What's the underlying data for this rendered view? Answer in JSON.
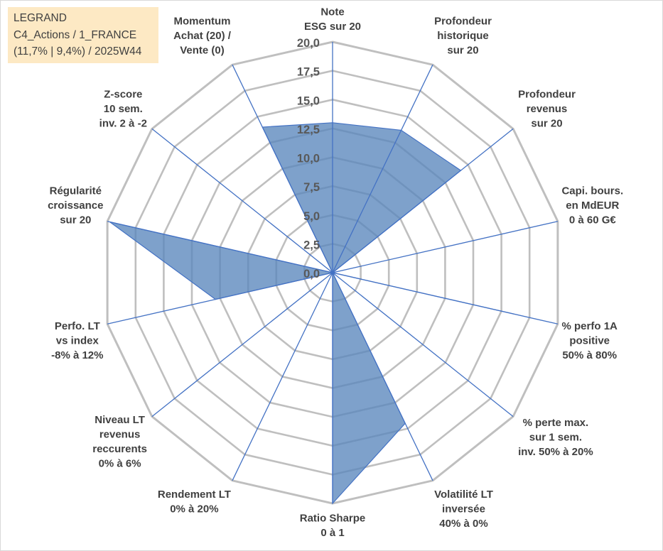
{
  "info_box": {
    "line1": "LEGRAND",
    "line2": "C4_Actions / 1_FRANCE",
    "line3": "(11,7% | 9,4%) / 2025W44"
  },
  "chart_data": {
    "type": "radar",
    "title": "",
    "rmin": 0,
    "rmax": 20,
    "rstep": 2.5,
    "radial_tick_labels": [
      "0,0",
      "2,5",
      "5,0",
      "7,5",
      "10,0",
      "12,5",
      "15,0",
      "17,5",
      "20,0"
    ],
    "axes": [
      {
        "label": [
          "Note",
          "ESG sur 20"
        ],
        "value": 13.0
      },
      {
        "label": [
          "Profondeur",
          "historique",
          "sur 20"
        ],
        "value": 13.7
      },
      {
        "label": [
          "Profondeur",
          "revenus",
          "sur 20"
        ],
        "value": 14.2
      },
      {
        "label": [
          "Capi. bours.",
          "en MdEUR",
          "0 à 60 G€"
        ],
        "value": 0.0
      },
      {
        "label": [
          "% perfo 1A",
          "positive",
          "50% à 80%"
        ],
        "value": 16.1
      },
      {
        "label": [
          "% perte max.",
          "sur 1 sem.",
          "inv. 50% à 20%"
        ],
        "value": 0.0
      },
      {
        "label": [
          "Volatilité LT",
          "inversée",
          "40% à 0%"
        ],
        "value": 14.5
      },
      {
        "label": [
          "Ratio Sharpe",
          "0 à 1"
        ],
        "value": 20.0
      },
      {
        "label": [
          "Rendement LT",
          "0% à 20%"
        ],
        "value": 0.0
      },
      {
        "label": [
          "Niveau LT",
          "revenus",
          "reccurents",
          "0% à 6%"
        ],
        "value": 0.0
      },
      {
        "label": [
          "Perfo. LT",
          "vs index",
          "-8% à 12%"
        ],
        "value": 10.4
      },
      {
        "label": [
          "Régularité",
          "croissance",
          "sur 20"
        ],
        "value": 19.8
      },
      {
        "label": [
          "Z-score",
          "10 sem.",
          "inv. 2 à -2"
        ],
        "value": 0.0
      },
      {
        "label": [
          "Momentum",
          "Achat (20) /",
          "Vente (0)"
        ],
        "value": 14.0
      }
    ],
    "colors": {
      "fill": "#5a87bd",
      "stroke": "#4472c4",
      "axis_line": "#4472c4",
      "grid": "#bfbfbf",
      "label": "#404040"
    }
  }
}
